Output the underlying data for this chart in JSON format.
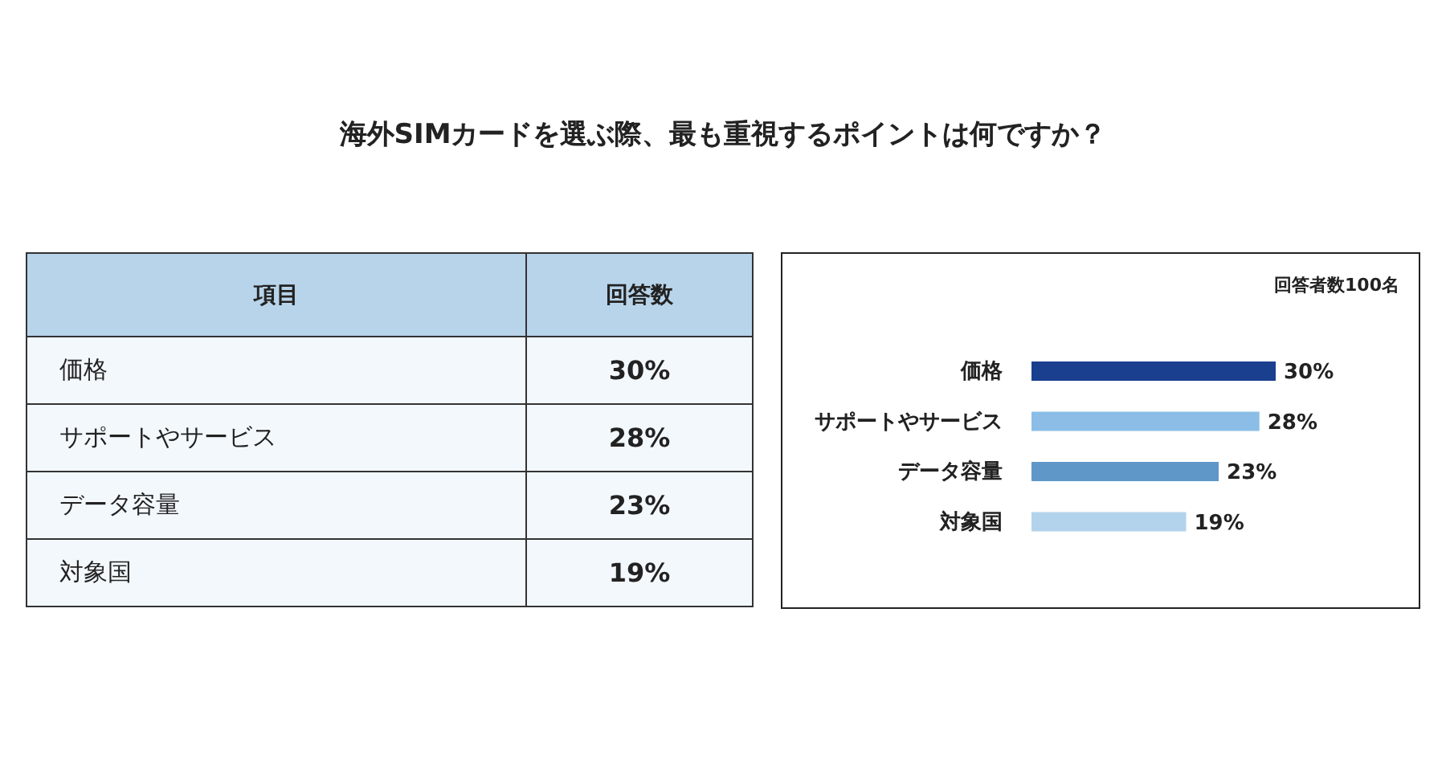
{
  "chart_data": {
    "type": "bar",
    "orientation": "horizontal",
    "title": "海外SIMカードを選ぶ際、最も重視するポイントは何ですか？",
    "categories": [
      "価格",
      "サポートやサービス",
      "データ容量",
      "対象国"
    ],
    "values": [
      30,
      28,
      23,
      19
    ],
    "colors": [
      "#1a3f8f",
      "#8bbde6",
      "#5f98c8",
      "#b3d3ec"
    ],
    "value_labels": [
      "30%",
      "28%",
      "23%",
      "19%"
    ],
    "annotations": [
      "項目",
      "回答数",
      "回答者数100名"
    ],
    "grid": false,
    "legend": false
  }
}
